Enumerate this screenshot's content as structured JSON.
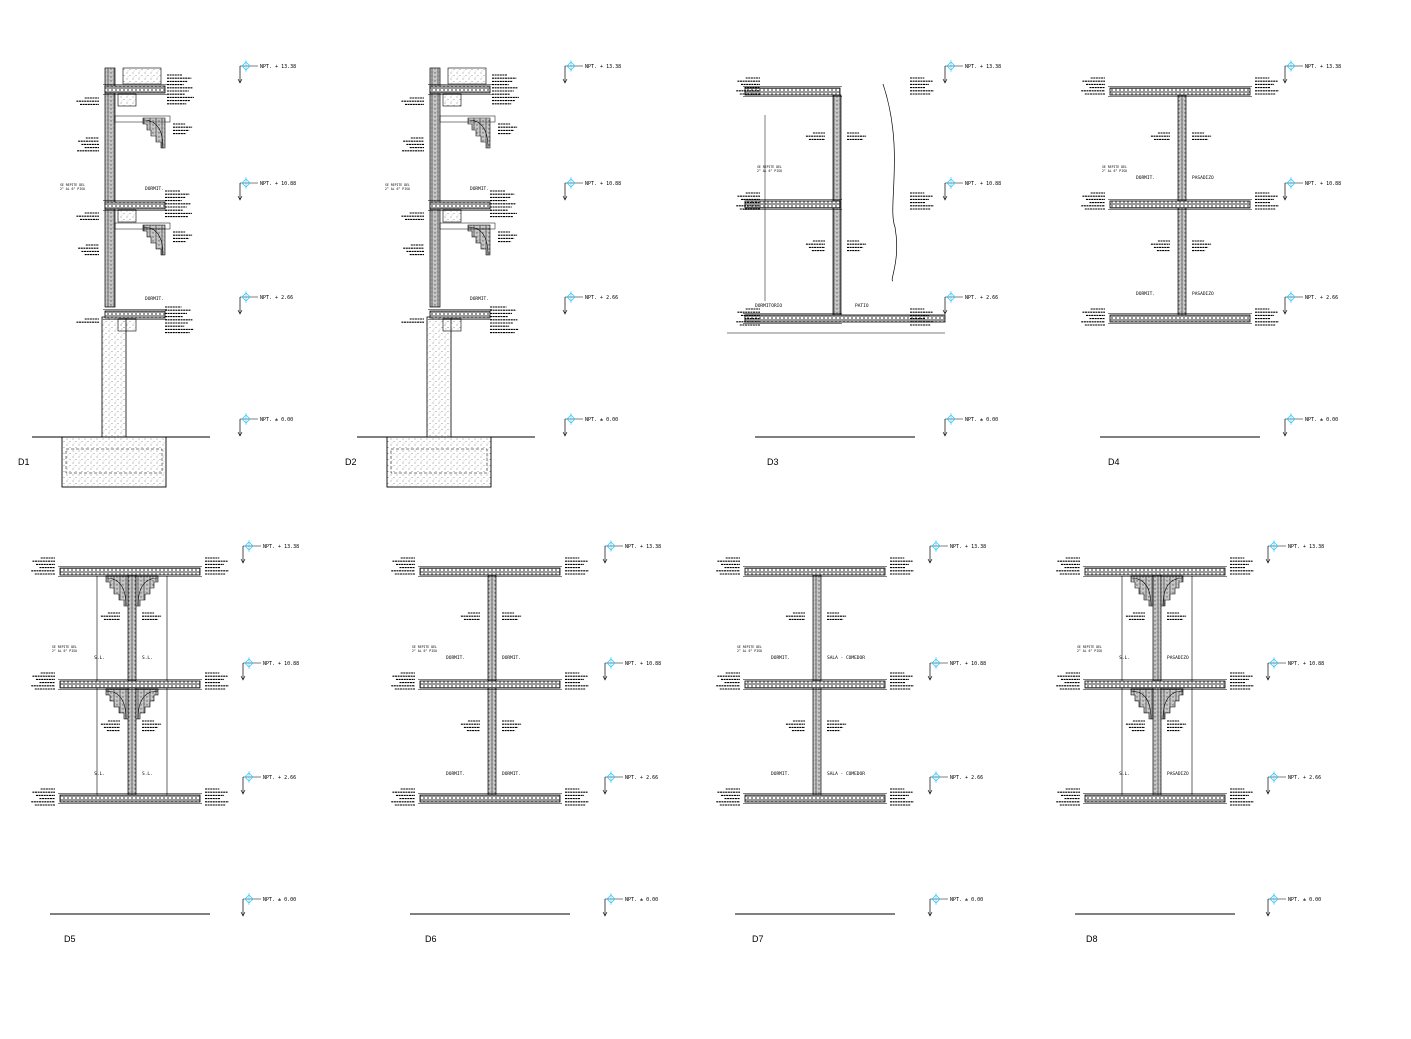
{
  "details": [
    {
      "id": "D1",
      "type": "foundation",
      "levels": [
        "NPT. + 13.38",
        "NPT. + 10.88",
        "NPT. + 2.66",
        "NPT. ± 0.00"
      ],
      "rooms": [
        "DORMIT.",
        "DORMIT."
      ],
      "notes": [
        "SE REPITE DEL",
        "2° AL 6° PISO"
      ]
    },
    {
      "id": "D2",
      "type": "foundation",
      "levels": [
        "NPT. + 13.38",
        "NPT. + 10.88",
        "NPT. + 2.66",
        "NPT. ± 0.00"
      ],
      "rooms": [
        "DORMIT.",
        "DORMIT."
      ],
      "notes": [
        "SE REPITE DEL",
        "2° AL 6° PISO"
      ]
    },
    {
      "id": "D3",
      "type": "wall",
      "levels": [
        "NPT. + 13.38",
        "NPT. + 10.88",
        "NPT. + 2.66",
        "NPT. ± 0.00"
      ],
      "rooms": [
        "DORMITORIO",
        "PATIO"
      ],
      "notes": [
        "SE REPITE DEL",
        "2° AL 6° PISO"
      ]
    },
    {
      "id": "D4",
      "type": "wall",
      "levels": [
        "NPT. + 13.38",
        "NPT. + 10.88",
        "NPT. + 2.66",
        "NPT. ± 0.00"
      ],
      "rooms": [
        "DORMIT.",
        "PASADIZO",
        "DORMIT.",
        "PASADIZO"
      ],
      "notes": [
        "SE REPITE DEL",
        "2° AL 6° PISO"
      ]
    },
    {
      "id": "D5",
      "type": "double",
      "levels": [
        "NPT. + 13.38",
        "NPT. + 10.88",
        "NPT. + 2.66",
        "NPT. ± 0.00"
      ],
      "rooms": [
        "S.L.",
        "S.L.",
        "S.L.",
        "S.L."
      ],
      "notes": [
        "SE REPITE DEL",
        "2° AL 6° PISO"
      ]
    },
    {
      "id": "D6",
      "type": "wall",
      "levels": [
        "NPT. + 13.38",
        "NPT. + 10.88",
        "NPT. + 2.66",
        "NPT. ± 0.00"
      ],
      "rooms": [
        "DORMIT.",
        "DORMIT.",
        "DORMIT.",
        "DORMIT."
      ],
      "notes": [
        "SE REPITE DEL",
        "2° AL 6° PISO"
      ]
    },
    {
      "id": "D7",
      "type": "wall",
      "levels": [
        "NPT. + 13.38",
        "NPT. + 10.88",
        "NPT. + 2.66",
        "NPT. ± 0.00"
      ],
      "rooms": [
        "DORMIT.",
        "SALA - COMEDOR",
        "DORMIT.",
        "SALA - COMEDOR"
      ],
      "notes": [
        "SE REPITE DEL",
        "2° AL 6° PISO"
      ]
    },
    {
      "id": "D8",
      "type": "double",
      "levels": [
        "NPT. + 13.38",
        "NPT. + 10.88",
        "NPT. + 2.66",
        "NPT. ± 0.00"
      ],
      "rooms": [
        "S.L.",
        "PASADIZO",
        "S.L.",
        "PASADIZO"
      ],
      "notes": [
        "SE REPITE DEL",
        "2° AL 6° PISO"
      ]
    }
  ],
  "colors": {
    "line": "#000000",
    "level_marker": "#33ccff",
    "background": "#ffffff"
  }
}
